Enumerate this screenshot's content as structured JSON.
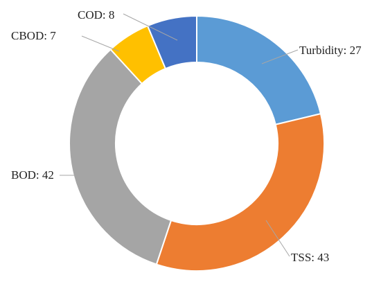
{
  "chart_data": {
    "type": "pie",
    "variant": "doughnut",
    "title": "",
    "legend": "none",
    "series": [
      {
        "values": [
          27,
          43,
          42,
          7,
          8
        ]
      }
    ],
    "categories": [
      "Turbidity",
      "TSS",
      "BOD",
      "CBOD",
      "COD"
    ],
    "values": [
      27,
      43,
      42,
      7,
      8
    ],
    "labels": [
      "Turbidity: 27",
      "TSS: 43",
      "BOD: 42",
      "CBOD: 7",
      "COD: 8"
    ],
    "colors": [
      "#5b9bd5",
      "#ed7d31",
      "#a5a5a5",
      "#ffc000",
      "#4472c4"
    ],
    "leader_line_color": "#a6a6a6",
    "start": "12 o'clock",
    "direction": "clockwise"
  }
}
